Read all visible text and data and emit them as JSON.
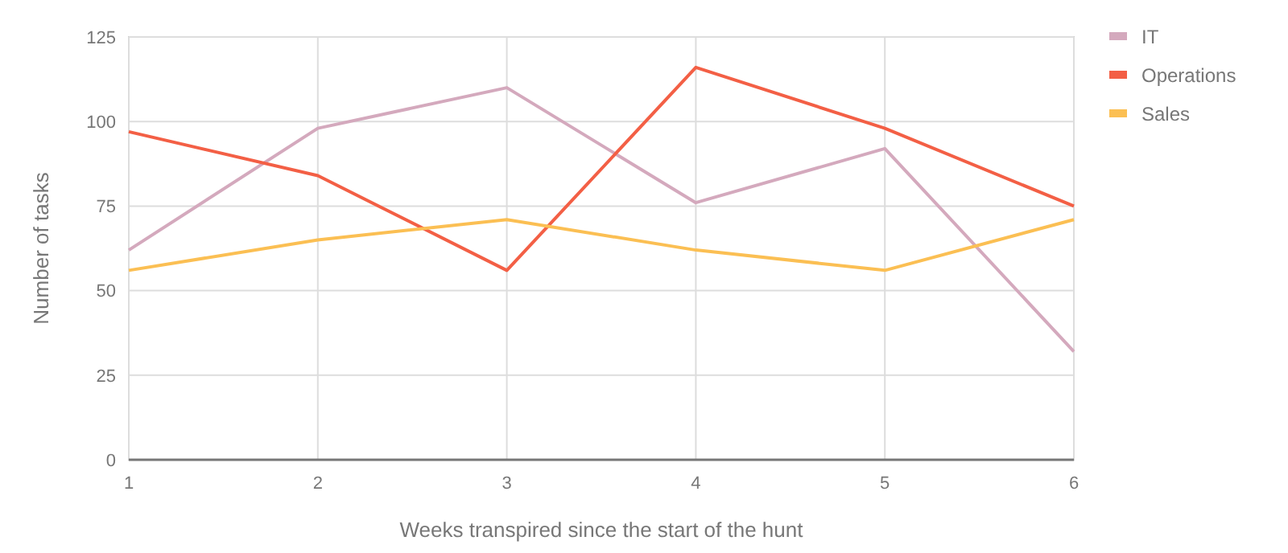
{
  "chart_data": {
    "type": "line",
    "xlabel": "Weeks transpired since the start of the hunt",
    "ylabel": "Number of tasks",
    "x": [
      1,
      2,
      3,
      4,
      5,
      6
    ],
    "xlim": [
      1,
      6
    ],
    "xticks": [
      1,
      2,
      3,
      4,
      5,
      6
    ],
    "ylim": [
      0,
      125
    ],
    "yticks": [
      0,
      25,
      50,
      75,
      100,
      125
    ],
    "grid": true,
    "legend": "top right",
    "series": [
      {
        "name": "IT",
        "color": "#d4a9bd",
        "values": [
          62,
          98,
          110,
          76,
          92,
          32
        ]
      },
      {
        "name": "Operations",
        "color": "#f35f45",
        "values": [
          97,
          84,
          56,
          116,
          98,
          75
        ]
      },
      {
        "name": "Sales",
        "color": "#fbbf53",
        "values": [
          56,
          65,
          71,
          62,
          56,
          71
        ]
      }
    ]
  }
}
